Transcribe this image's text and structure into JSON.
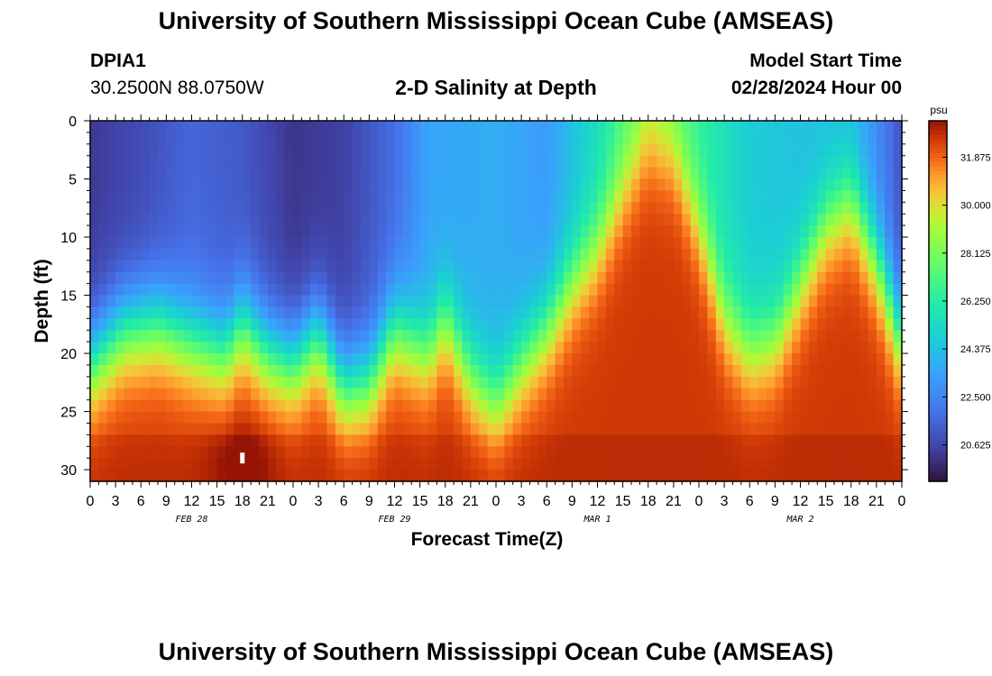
{
  "header": {
    "title": "University of Southern Mississippi Ocean Cube (AMSEAS)",
    "station": "DPIA1",
    "coords": "30.2500N  88.0750W",
    "plot_title": "2-D Salinity at Depth",
    "model_start_label": "Model Start Time",
    "model_start_value": "02/28/2024 Hour 00"
  },
  "footer": {
    "title": "University of Southern Mississippi Ocean Cube (AMSEAS)"
  },
  "chart_data": {
    "type": "heatmap",
    "title": "2-D Salinity at Depth",
    "xlabel": "Forecast Time(Z)",
    "ylabel": "Depth (ft)",
    "x_ticks": [
      "0",
      "3",
      "6",
      "9",
      "12",
      "15",
      "18",
      "21",
      "0",
      "3",
      "6",
      "9",
      "12",
      "15",
      "18",
      "21",
      "0",
      "3",
      "6",
      "9",
      "12",
      "15",
      "18",
      "21",
      "0",
      "3",
      "6",
      "9",
      "12",
      "15",
      "18",
      "21",
      "0"
    ],
    "x_range_hours": [
      0,
      96
    ],
    "date_labels": [
      {
        "label": "FEB 28",
        "hour": 12
      },
      {
        "label": "FEB 29",
        "hour": 36
      },
      {
        "label": "MAR 1",
        "hour": 60
      },
      {
        "label": "MAR 2",
        "hour": 84
      }
    ],
    "y_ticks": [
      0,
      5,
      10,
      15,
      20,
      25,
      30
    ],
    "ylim": [
      0,
      31
    ],
    "colorbar": {
      "unit": "psu",
      "ticks": [
        "31.875",
        "30.000",
        "28.125",
        "26.250",
        "24.375",
        "22.500",
        "20.625"
      ],
      "vmin": 19.2,
      "vmax": 33.3
    },
    "surface_salinity_by_hour": [
      [
        0,
        20.3
      ],
      [
        6,
        20.8
      ],
      [
        12,
        21.6
      ],
      [
        18,
        21.2
      ],
      [
        24,
        20.2
      ],
      [
        30,
        20.5
      ],
      [
        36,
        21.8
      ],
      [
        40,
        23.5
      ],
      [
        48,
        23.8
      ],
      [
        54,
        23.2
      ],
      [
        60,
        25.5
      ],
      [
        66,
        28.5
      ],
      [
        72,
        26.5
      ],
      [
        78,
        24.8
      ],
      [
        84,
        24.4
      ],
      [
        90,
        24.2
      ],
      [
        94,
        22.2
      ],
      [
        96,
        21
      ]
    ],
    "halocline_depth_ft_by_hour": [
      [
        0,
        21
      ],
      [
        4,
        18
      ],
      [
        8,
        17.5
      ],
      [
        12,
        19
      ],
      [
        16,
        20
      ],
      [
        18,
        17.5
      ],
      [
        21,
        20
      ],
      [
        24,
        21
      ],
      [
        27,
        18.5
      ],
      [
        30,
        23
      ],
      [
        33,
        22.5
      ],
      [
        36,
        18
      ],
      [
        40,
        20
      ],
      [
        42,
        17
      ],
      [
        45,
        22
      ],
      [
        48,
        24.5
      ],
      [
        51,
        21
      ],
      [
        54,
        18
      ],
      [
        57,
        14
      ],
      [
        60,
        11
      ],
      [
        63,
        6
      ],
      [
        66,
        2
      ],
      [
        69,
        3
      ],
      [
        72,
        9
      ],
      [
        75,
        17
      ],
      [
        78,
        20
      ],
      [
        81,
        19
      ],
      [
        84,
        14
      ],
      [
        87,
        9
      ],
      [
        90,
        7
      ],
      [
        93,
        12
      ],
      [
        96,
        19
      ]
    ],
    "bottom_salinity": 32.6,
    "marker": {
      "hour": 18,
      "depth_ft": 29
    }
  }
}
